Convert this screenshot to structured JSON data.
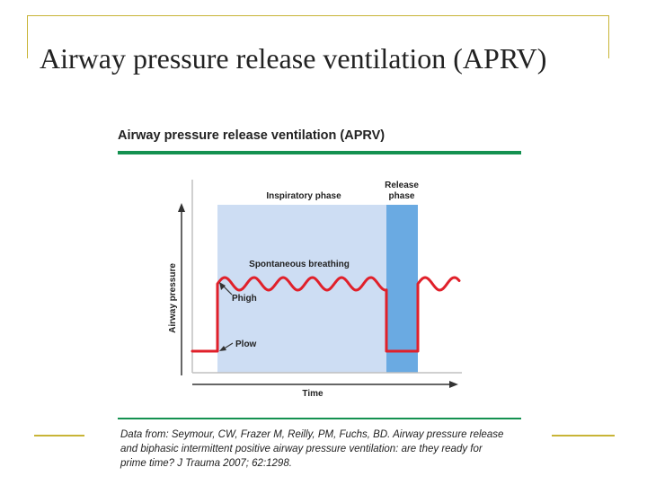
{
  "slide": {
    "title": "Airway pressure release ventilation (APRV)"
  },
  "figure": {
    "title": "Airway pressure release ventilation (APRV)",
    "citation": "Data from: Seymour, CW, Frazer M, Reilly, PM, Fuchs, BD. Airway pressure release and biphasic intermittent positive airway pressure ventilation: are they ready for prime time? J Trauma 2007; 62:1298."
  },
  "diagram": {
    "labels": {
      "inspiratory_phase": "Inspiratory phase",
      "release_phase_line1": "Release",
      "release_phase_line2": "phase",
      "spontaneous_breathing": "Spontaneous breathing",
      "phigh": "Phigh",
      "plow": "Plow",
      "y_axis": "Airway pressure",
      "x_axis": "Time"
    },
    "colors": {
      "inspiratory_region": "#cdddf3",
      "release_region": "#6aaae2",
      "pressure_trace": "#e0202a",
      "axis": "#333333",
      "grid": "#c0c0c0"
    }
  }
}
